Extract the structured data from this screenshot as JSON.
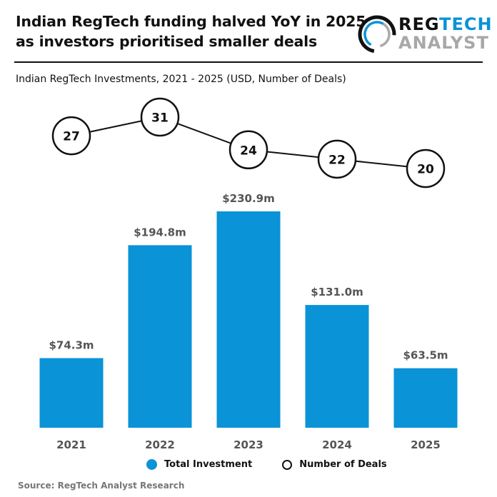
{
  "title_lines": [
    "Indian RegTech funding halved YoY in 2025",
    "as investors prioritised smaller deals"
  ],
  "logo": {
    "text_1a": "REG",
    "text_1b": "TECH",
    "text_2": "ANALYST"
  },
  "subtitle": "Indian RegTech Investments, 2021 - 2025 (USD, Number of Deals)",
  "colors": {
    "bar": "#0a93d6",
    "label": "#555555",
    "deal_line": "#111111"
  },
  "chart_data": {
    "type": "bar",
    "categories": [
      "2021",
      "2022",
      "2023",
      "2024",
      "2025"
    ],
    "series": [
      {
        "name": "Total Investment",
        "values": [
          74.3,
          194.8,
          230.9,
          131.0,
          63.5
        ],
        "labels": [
          "$74.3m",
          "$194.8m",
          "$230.9m",
          "$131.0m",
          "$63.5m"
        ],
        "unit": "USD millions"
      },
      {
        "name": "Number of Deals",
        "type": "line",
        "values": [
          27,
          31,
          24,
          22,
          20
        ]
      }
    ],
    "title": "Indian RegTech Investments, 2021 - 2025 (USD, Number of Deals)",
    "grid": false,
    "legend": "bottom"
  },
  "legend": {
    "investment": "Total Investment",
    "deals": "Number of Deals"
  },
  "source": "Source: RegTech Analyst Research"
}
